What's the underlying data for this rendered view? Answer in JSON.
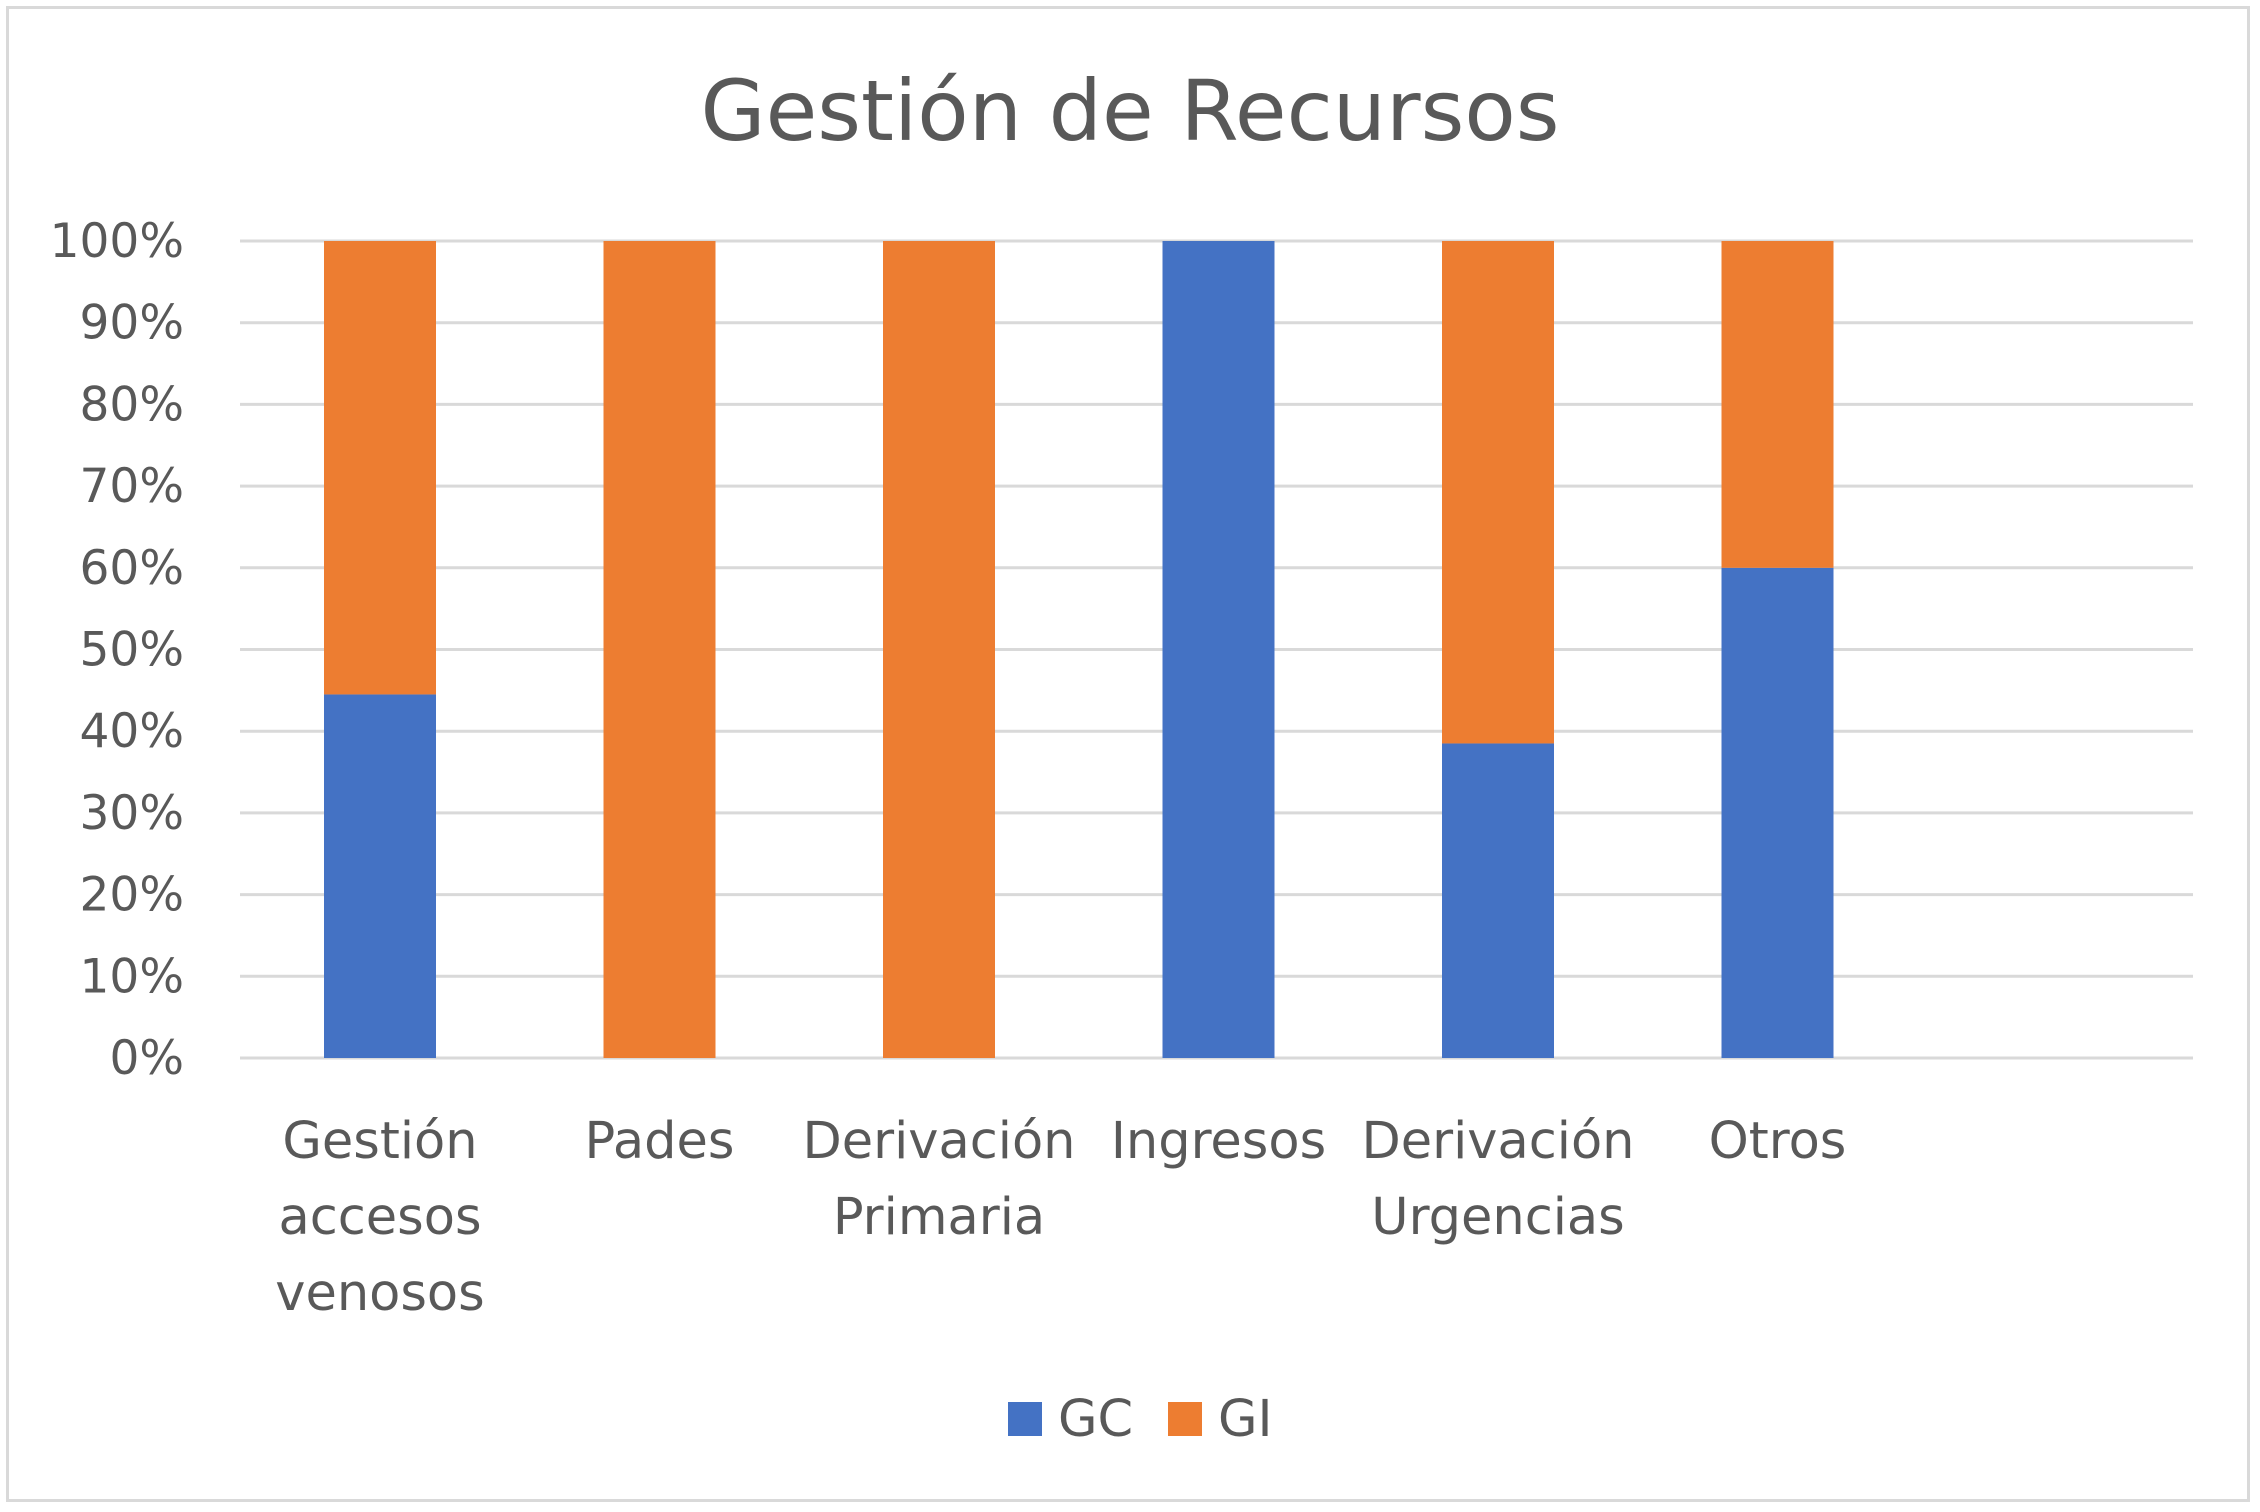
{
  "chart_data": {
    "type": "bar",
    "stacked": true,
    "percent_stacked": true,
    "title": "Gestión de Recursos",
    "xlabel": "",
    "ylabel": "",
    "ylim": [
      0,
      100
    ],
    "y_ticks": [
      "0%",
      "10%",
      "20%",
      "30%",
      "40%",
      "50%",
      "60%",
      "70%",
      "80%",
      "90%",
      "100%"
    ],
    "categories": [
      [
        "Gestión",
        "accesos",
        "venosos"
      ],
      [
        "Pades"
      ],
      [
        "Derivación",
        "Primaria"
      ],
      [
        "Ingresos"
      ],
      [
        "Derivación",
        "Urgencias"
      ],
      [
        "Otros"
      ]
    ],
    "series": [
      {
        "name": "GC",
        "color": "#4472c4",
        "values": [
          44.5,
          0,
          0,
          100,
          38.5,
          60
        ]
      },
      {
        "name": "GI",
        "color": "#ed7d31",
        "values": [
          55.5,
          100,
          100,
          0,
          61.5,
          40
        ]
      }
    ],
    "grid": true,
    "gridline_color": "#d9d9d9",
    "legend_position": "bottom"
  }
}
